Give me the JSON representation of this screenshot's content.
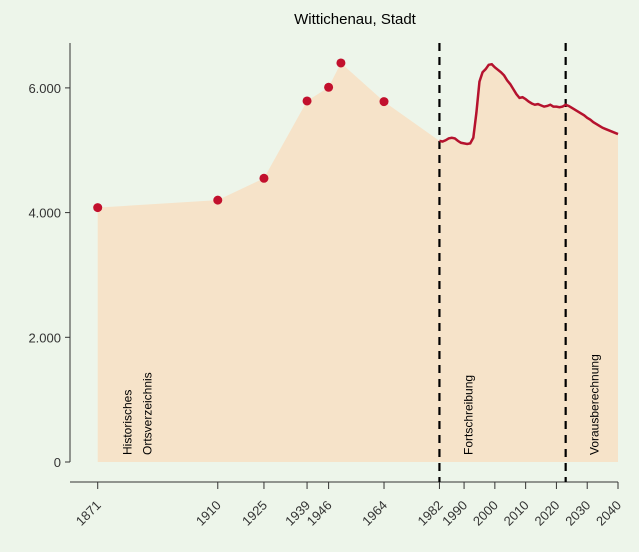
{
  "chart_data": {
    "type": "area-line",
    "title": "Wittichenau, Stadt",
    "background": "#edf5ea",
    "area_color": "#f6e3c9",
    "xlim": [
      1862,
      2040
    ],
    "ylim": [
      0,
      6720
    ],
    "xticks": [
      1871,
      1910,
      1925,
      1939,
      1946,
      1964,
      1982,
      1990,
      2000,
      2010,
      2020,
      2030,
      2040
    ],
    "yticks": [
      0,
      {
        "value": 2000,
        "label": "2.000"
      },
      {
        "value": 4000,
        "label": "4.000"
      },
      {
        "value": 6000,
        "label": "6.000"
      }
    ],
    "series": [
      {
        "type": "scatter",
        "color": "#c2102d",
        "x": [
          1871,
          1910,
          1925,
          1939,
          1946,
          1950,
          1964
        ],
        "values": [
          4080,
          4200,
          4550,
          5790,
          6010,
          6400,
          5780
        ]
      },
      {
        "type": "line",
        "color": "#b5122e",
        "x": [
          1982,
          1983,
          1984,
          1985,
          1986,
          1987,
          1988,
          1989,
          1990,
          1991,
          1992,
          1993,
          1994,
          1995,
          1996,
          1997,
          1998,
          1999,
          2000,
          2001,
          2002,
          2003,
          2004,
          2005,
          2006,
          2007,
          2008,
          2009,
          2010,
          2011,
          2012,
          2013,
          2014,
          2015,
          2016,
          2017,
          2018,
          2019,
          2020,
          2021,
          2022,
          2023,
          2024,
          2025,
          2026,
          2027,
          2028,
          2029,
          2030,
          2031,
          2032,
          2033,
          2034,
          2035,
          2036,
          2037,
          2038,
          2039,
          2040
        ],
        "values": [
          5150,
          5140,
          5160,
          5190,
          5200,
          5190,
          5150,
          5120,
          5110,
          5100,
          5110,
          5200,
          5600,
          6100,
          6250,
          6300,
          6370,
          6380,
          6330,
          6290,
          6250,
          6200,
          6120,
          6060,
          5980,
          5900,
          5840,
          5850,
          5820,
          5780,
          5750,
          5730,
          5740,
          5720,
          5700,
          5710,
          5730,
          5700,
          5700,
          5690,
          5700,
          5730,
          5710,
          5680,
          5650,
          5620,
          5590,
          5560,
          5520,
          5490,
          5450,
          5420,
          5390,
          5360,
          5340,
          5320,
          5300,
          5280,
          5260
        ]
      }
    ],
    "vlines": [
      1982,
      2023
    ],
    "annotations": [
      {
        "lines": [
          "Historisches",
          "Ortsverzeichnis"
        ]
      },
      {
        "lines": [
          "Fortschreibung"
        ]
      },
      {
        "lines": [
          "Vorausberechnung"
        ]
      }
    ]
  }
}
